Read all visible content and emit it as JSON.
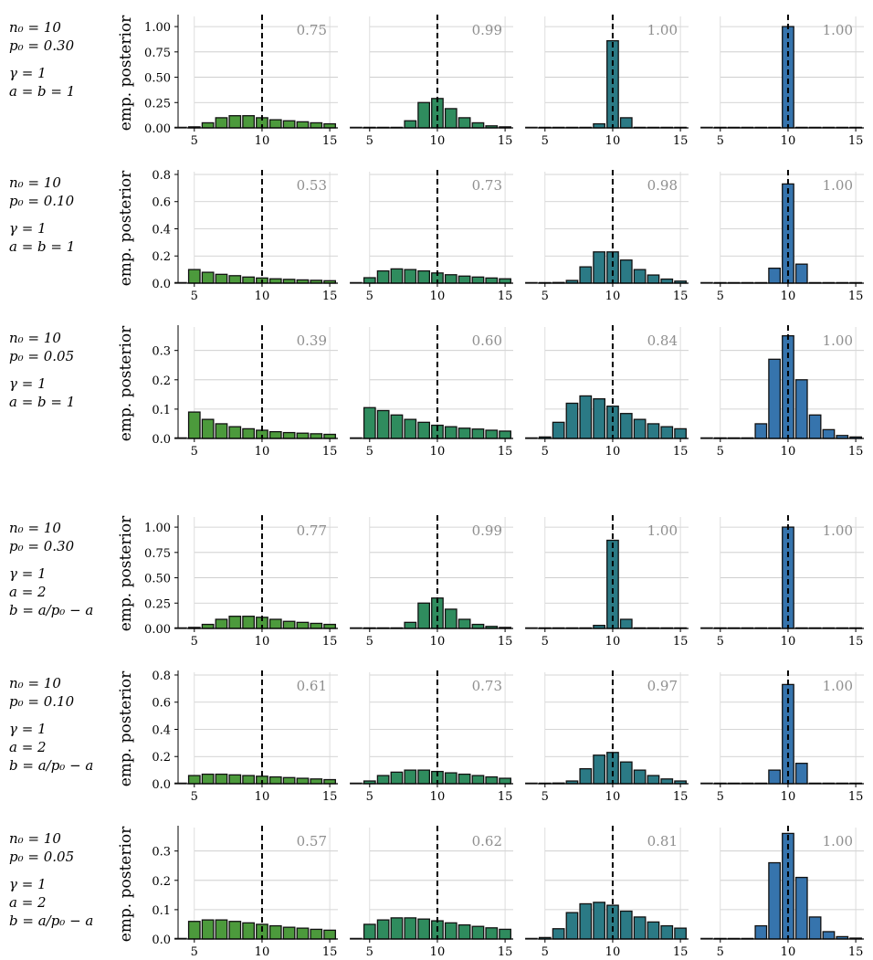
{
  "ylabel": "emp. posterior",
  "row_labels": [
    {
      "n0": "n₀ = 10",
      "p0": "p₀ = 0.30",
      "gamma": "γ = 1",
      "a": "a = b = 1",
      "b": ""
    },
    {
      "n0": "n₀ = 10",
      "p0": "p₀ = 0.10",
      "gamma": "γ = 1",
      "a": "a = b = 1",
      "b": ""
    },
    {
      "n0": "n₀ = 10",
      "p0": "p₀ = 0.05",
      "gamma": "γ = 1",
      "a": "a = b = 1",
      "b": ""
    },
    {
      "n0": "n₀ = 10",
      "p0": "p₀ = 0.30",
      "gamma": "γ = 1",
      "a": "a = 2",
      "b": "b = a/p₀ − a"
    },
    {
      "n0": "n₀ = 10",
      "p0": "p₀ = 0.10",
      "gamma": "γ = 1",
      "a": "a = 2",
      "b": "b = a/p₀ − a"
    },
    {
      "n0": "n₀ = 10",
      "p0": "p₀ = 0.05",
      "gamma": "γ = 1",
      "a": "a = 2",
      "b": "b = a/p₀ − a"
    }
  ],
  "colors": [
    "#4c9a3c",
    "#2f8c5e",
    "#2b7a85",
    "#3674ad"
  ],
  "chart_data": {
    "type": "bar",
    "x": [
      4,
      5,
      6,
      7,
      8,
      9,
      10,
      11,
      12,
      13,
      14,
      15
    ],
    "xticks": [
      5,
      10,
      15
    ],
    "vline": 10,
    "rows": [
      {
        "ylim": [
          0,
          1.1
        ],
        "yticks": [
          "0.00",
          "0.25",
          "0.50",
          "0.75",
          "1.00"
        ],
        "ytick_values": [
          0,
          0.25,
          0.5,
          0.75,
          1.0
        ],
        "panels": [
          {
            "annotation": "0.75",
            "values": [
              0.0,
              0.01,
              0.05,
              0.1,
              0.12,
              0.12,
              0.1,
              0.08,
              0.07,
              0.06,
              0.05,
              0.04
            ]
          },
          {
            "annotation": "0.99",
            "values": [
              0,
              0,
              0.0,
              0.0,
              0.07,
              0.25,
              0.29,
              0.19,
              0.1,
              0.05,
              0.02,
              0.01
            ]
          },
          {
            "annotation": "1.00",
            "values": [
              0,
              0,
              0,
              0,
              0,
              0.04,
              0.86,
              0.1,
              0,
              0,
              0,
              0
            ]
          },
          {
            "annotation": "1.00",
            "values": [
              0,
              0,
              0,
              0,
              0,
              0,
              1.0,
              0,
              0,
              0,
              0,
              0
            ]
          }
        ]
      },
      {
        "ylim": [
          0,
          0.82
        ],
        "yticks": [
          "0.0",
          "0.2",
          "0.4",
          "0.6",
          "0.8"
        ],
        "ytick_values": [
          0,
          0.2,
          0.4,
          0.6,
          0.8
        ],
        "panels": [
          {
            "annotation": "0.53",
            "values": [
              0.0,
              0.1,
              0.08,
              0.065,
              0.055,
              0.045,
              0.038,
              0.032,
              0.028,
              0.024,
              0.021,
              0.018
            ]
          },
          {
            "annotation": "0.73",
            "values": [
              0.0,
              0.04,
              0.09,
              0.105,
              0.1,
              0.09,
              0.075,
              0.062,
              0.052,
              0.045,
              0.038,
              0.032
            ]
          },
          {
            "annotation": "0.98",
            "values": [
              0,
              0,
              0.005,
              0.02,
              0.12,
              0.23,
              0.23,
              0.17,
              0.1,
              0.06,
              0.03,
              0.015
            ]
          },
          {
            "annotation": "1.00",
            "values": [
              0,
              0,
              0,
              0,
              0,
              0.11,
              0.73,
              0.14,
              0,
              0,
              0,
              0
            ]
          }
        ]
      },
      {
        "ylim": [
          0,
          0.38
        ],
        "yticks": [
          "0.0",
          "0.1",
          "0.2",
          "0.3"
        ],
        "ytick_values": [
          0,
          0.1,
          0.2,
          0.3
        ],
        "panels": [
          {
            "annotation": "0.39",
            "values": [
              0.0,
              0.09,
              0.065,
              0.05,
              0.04,
              0.033,
              0.028,
              0.023,
              0.02,
              0.018,
              0.016,
              0.014
            ]
          },
          {
            "annotation": "0.60",
            "values": [
              0.0,
              0.105,
              0.095,
              0.08,
              0.065,
              0.055,
              0.045,
              0.04,
              0.035,
              0.032,
              0.028,
              0.025
            ]
          },
          {
            "annotation": "0.84",
            "values": [
              0.0,
              0.005,
              0.055,
              0.12,
              0.145,
              0.135,
              0.11,
              0.085,
              0.065,
              0.05,
              0.04,
              0.033
            ]
          },
          {
            "annotation": "1.00",
            "values": [
              0,
              0,
              0,
              0,
              0.05,
              0.27,
              0.35,
              0.2,
              0.08,
              0.03,
              0.01,
              0.005
            ]
          }
        ]
      },
      {
        "ylim": [
          0,
          1.1
        ],
        "yticks": [
          "0.00",
          "0.25",
          "0.50",
          "0.75",
          "1.00"
        ],
        "ytick_values": [
          0,
          0.25,
          0.5,
          0.75,
          1.0
        ],
        "panels": [
          {
            "annotation": "0.77",
            "values": [
              0.0,
              0.01,
              0.04,
              0.09,
              0.12,
              0.12,
              0.11,
              0.09,
              0.07,
              0.06,
              0.05,
              0.04
            ]
          },
          {
            "annotation": "0.99",
            "values": [
              0,
              0,
              0.0,
              0.0,
              0.06,
              0.25,
              0.3,
              0.19,
              0.09,
              0.04,
              0.02,
              0.01
            ]
          },
          {
            "annotation": "1.00",
            "values": [
              0,
              0,
              0,
              0,
              0,
              0.03,
              0.87,
              0.09,
              0,
              0,
              0,
              0
            ]
          },
          {
            "annotation": "1.00",
            "values": [
              0,
              0,
              0,
              0,
              0,
              0,
              1.0,
              0,
              0,
              0,
              0,
              0
            ]
          }
        ]
      },
      {
        "ylim": [
          0,
          0.82
        ],
        "yticks": [
          "0.0",
          "0.2",
          "0.4",
          "0.6",
          "0.8"
        ],
        "ytick_values": [
          0,
          0.2,
          0.4,
          0.6,
          0.8
        ],
        "panels": [
          {
            "annotation": "0.61",
            "values": [
              0.0,
              0.06,
              0.07,
              0.07,
              0.065,
              0.06,
              0.055,
              0.05,
              0.045,
              0.04,
              0.035,
              0.03
            ]
          },
          {
            "annotation": "0.73",
            "values": [
              0.0,
              0.02,
              0.06,
              0.085,
              0.1,
              0.1,
              0.09,
              0.08,
              0.07,
              0.06,
              0.05,
              0.04
            ]
          },
          {
            "annotation": "0.97",
            "values": [
              0,
              0,
              0.005,
              0.02,
              0.11,
              0.21,
              0.23,
              0.16,
              0.1,
              0.06,
              0.035,
              0.02
            ]
          },
          {
            "annotation": "1.00",
            "values": [
              0,
              0,
              0,
              0,
              0,
              0.1,
              0.73,
              0.15,
              0,
              0,
              0,
              0
            ]
          }
        ]
      },
      {
        "ylim": [
          0,
          0.38
        ],
        "yticks": [
          "0.0",
          "0.1",
          "0.2",
          "0.3"
        ],
        "ytick_values": [
          0,
          0.1,
          0.2,
          0.3
        ],
        "panels": [
          {
            "annotation": "0.57",
            "values": [
              0.0,
              0.06,
              0.065,
              0.065,
              0.06,
              0.055,
              0.05,
              0.045,
              0.04,
              0.037,
              0.033,
              0.03
            ]
          },
          {
            "annotation": "0.62",
            "values": [
              0.0,
              0.05,
              0.065,
              0.072,
              0.072,
              0.068,
              0.062,
              0.055,
              0.048,
              0.043,
              0.038,
              0.033
            ]
          },
          {
            "annotation": "0.81",
            "values": [
              0.0,
              0.005,
              0.035,
              0.09,
              0.12,
              0.125,
              0.115,
              0.095,
              0.075,
              0.058,
              0.045,
              0.037
            ]
          },
          {
            "annotation": "1.00",
            "values": [
              0,
              0,
              0,
              0,
              0.045,
              0.26,
              0.36,
              0.21,
              0.075,
              0.025,
              0.008,
              0.003
            ]
          }
        ]
      }
    ]
  }
}
